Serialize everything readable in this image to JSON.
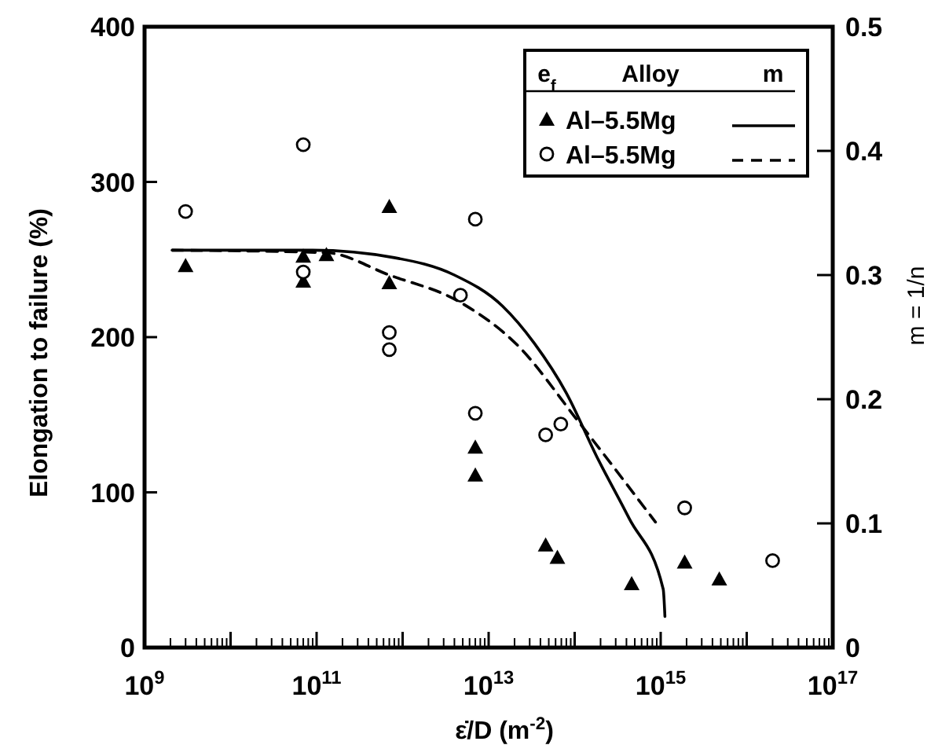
{
  "chart_data": {
    "type": "scatter",
    "xlabel": "ε̇/D (m$^{-2}$)",
    "ylabel": "Elongation to failure (%)",
    "y2label": "m = 1/n",
    "legend_title": "e$_{f}$   Alloy   m",
    "legend": "top right",
    "grid": false,
    "log": "x",
    "xlim": [
      1000000000.0,
      1e+17
    ],
    "xticks": [
      {
        "value": 1000000000.0,
        "label": "10$^{9}$"
      },
      {
        "value": 10000000000.0,
        "label": null
      },
      {
        "value": 100000000000.0,
        "label": "10$^{11}$"
      },
      {
        "value": 1000000000000.0,
        "label": null
      },
      {
        "value": 10000000000000.0,
        "label": "10$^{13}$"
      },
      {
        "value": 100000000000000.0,
        "label": null
      },
      {
        "value": 1000000000000000.0,
        "label": "10$^{15}$"
      },
      {
        "value": 1e+16,
        "label": null
      },
      {
        "value": 1e+17,
        "label": "10$^{17}$"
      }
    ],
    "ylim": [
      0,
      400
    ],
    "yticks": [
      0,
      100,
      200,
      300,
      400
    ],
    "y2lim": [
      0,
      0.5
    ],
    "y2ticks": [
      0,
      0.1,
      0.2,
      0.3,
      0.4,
      0.5
    ],
    "series": [
      {
        "name": "Al–5.5Mg",
        "color": "#000000",
        "marker": "triangle",
        "x": [
          3000000000.0,
          70000000000.0,
          130000000000.0,
          70000000000.0,
          700000000000.0,
          700000000000.0,
          7000000000000.0,
          7000000000000.0,
          46000000000000.0,
          63000000000000.0,
          460000000000000.0,
          1900000000000000.0,
          4800000000000000.0
        ],
        "values": [
          246,
          252,
          253,
          236,
          284,
          235,
          129,
          111,
          66,
          58,
          41,
          55,
          44
        ]
      },
      {
        "name": "Al–5.5Mg",
        "color": "#000000",
        "marker": "circle",
        "x": [
          3000000000.0,
          70000000000.0,
          70000000000.0,
          700000000000.0,
          700000000000.0,
          7000000000000.0,
          4700000000000.0,
          7000000000000.0,
          46000000000000.0,
          69000000000000.0,
          1900000000000000.0,
          2e+16
        ],
        "values": [
          281,
          324,
          242,
          203,
          192,
          276,
          227,
          151,
          137,
          144,
          90,
          56
        ]
      },
      {
        "type": "line",
        "axis": "y2",
        "color": "#000000",
        "line_style": "solid",
        "marker": "none",
        "x": [
          2100000000.0,
          90000000000.0,
          800000000000.0,
          4000000000000.0,
          14500000000000.0,
          34000000000000.0,
          80000000000000.0,
          180000000000000.0,
          430000000000000.0,
          1070000000000000.0,
          1120000000000000.0
        ],
        "values": [
          0.32,
          0.32,
          0.314,
          0.3,
          0.275,
          0.245,
          0.205,
          0.154,
          0.104,
          0.047,
          0.025
        ]
      },
      {
        "type": "line",
        "axis": "y2",
        "color": "#000000",
        "line_style": "dashed",
        "marker": "none",
        "x": [
          2100000000.0,
          130000000000.0,
          700000000000.0,
          4700000000000.0,
          22000000000000.0,
          105000000000000.0,
          870000000000000.0
        ],
        "values": [
          0.32,
          0.318,
          0.3,
          0.278,
          0.243,
          0.184,
          0.101
        ]
      }
    ]
  }
}
